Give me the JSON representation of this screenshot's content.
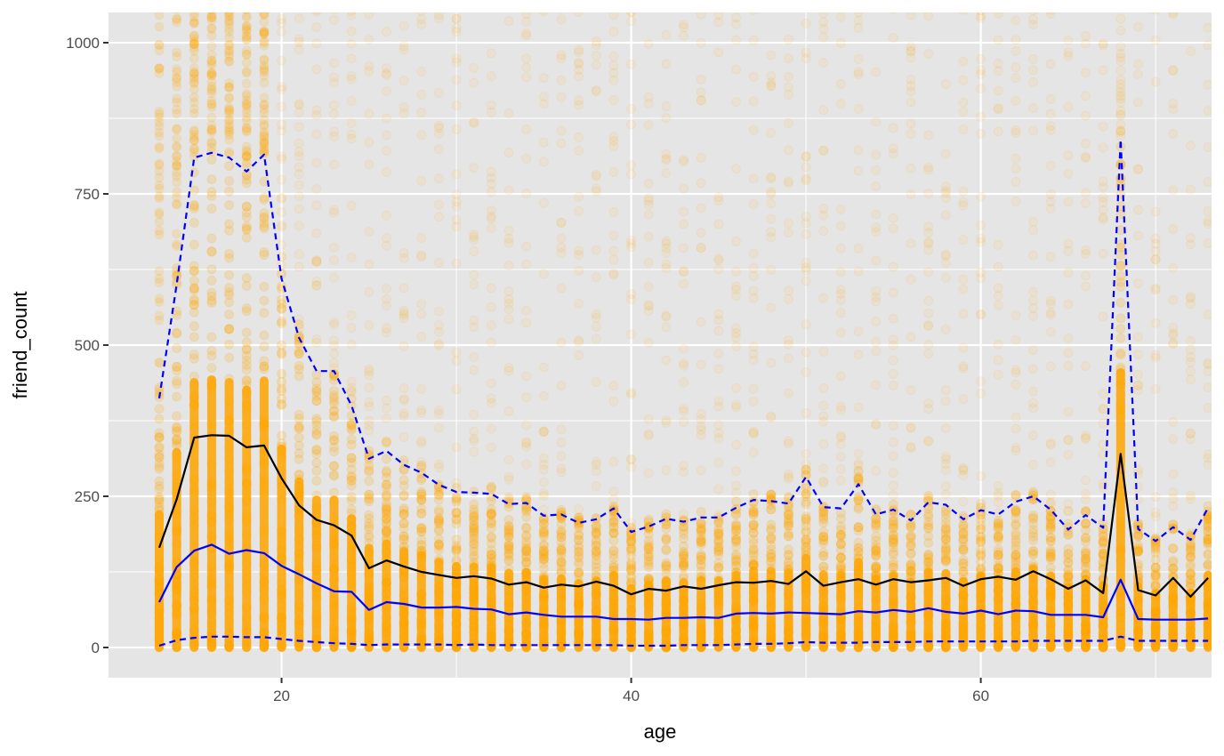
{
  "chart_data": {
    "type": "scatter",
    "xlabel": "age",
    "ylabel": "friend_count",
    "xlim": [
      10.1,
      73.2
    ],
    "ylim": [
      -50,
      1050
    ],
    "x_ticks": [
      20,
      40,
      60
    ],
    "y_ticks": [
      0,
      250,
      500,
      750,
      1000
    ],
    "grid": true,
    "background": "#e5e5e5",
    "colors": {
      "points": "#ffa500",
      "mean": "#000000",
      "quantiles": "#0000ff",
      "grid_major": "#ffffff"
    },
    "points_note": "dense column of points per integer age; 0 to beyond 1000",
    "ages": [
      13,
      14,
      15,
      16,
      17,
      18,
      19,
      20,
      21,
      22,
      23,
      24,
      25,
      26,
      27,
      28,
      29,
      30,
      31,
      32,
      33,
      34,
      35,
      36,
      37,
      38,
      39,
      40,
      41,
      42,
      43,
      44,
      45,
      46,
      47,
      48,
      49,
      50,
      51,
      52,
      53,
      54,
      55,
      56,
      57,
      58,
      59,
      60,
      61,
      62,
      63,
      64,
      65,
      66,
      67,
      68,
      69,
      70,
      71,
      72,
      73
    ],
    "series": [
      {
        "key": "mean",
        "line": "solid",
        "color": "#000000",
        "values": [
          165,
          245,
          347,
          351,
          350,
          331,
          334,
          280,
          235,
          211,
          202,
          185,
          131,
          144,
          134,
          125,
          120,
          115,
          118,
          114,
          104,
          108,
          99,
          104,
          101,
          109,
          102,
          88,
          97,
          94,
          101,
          97,
          103,
          108,
          107,
          110,
          105,
          126,
          102,
          108,
          113,
          104,
          113,
          108,
          111,
          115,
          102,
          113,
          117,
          112,
          126,
          113,
          97,
          111,
          90,
          320,
          95,
          86,
          115,
          84,
          115
        ]
      },
      {
        "key": "median",
        "line": "solid",
        "color": "#0000ff",
        "values": [
          75,
          133,
          160,
          170,
          155,
          161,
          156,
          135,
          121,
          106,
          93,
          92,
          62,
          75,
          72,
          66,
          66,
          67,
          64,
          63,
          55,
          58,
          54,
          51,
          51,
          51,
          47,
          47,
          46,
          49,
          49,
          50,
          49,
          56,
          57,
          56,
          58,
          57,
          56,
          55,
          60,
          58,
          62,
          59,
          65,
          59,
          56,
          61,
          55,
          61,
          60,
          54,
          54,
          54,
          50,
          112,
          47,
          46,
          46,
          46,
          48
        ]
      },
      {
        "key": "q90",
        "line": "dashed",
        "color": "#0000ff",
        "values": [
          412,
          600,
          810,
          818,
          810,
          787,
          815,
          610,
          512,
          457,
          457,
          400,
          312,
          325,
          302,
          289,
          269,
          257,
          256,
          254,
          237,
          239,
          218,
          220,
          206,
          212,
          230,
          191,
          200,
          213,
          208,
          215,
          215,
          231,
          244,
          242,
          238,
          282,
          232,
          230,
          270,
          220,
          228,
          210,
          240,
          236,
          212,
          227,
          220,
          241,
          250,
          228,
          195,
          219,
          198,
          840,
          196,
          176,
          199,
          178,
          231
        ]
      },
      {
        "key": "q10",
        "line": "dashed",
        "color": "#0000ff",
        "values": [
          3,
          12,
          16,
          18,
          18,
          17,
          17,
          14,
          11,
          9,
          7,
          6,
          4,
          5,
          5,
          5,
          5,
          4,
          5,
          4,
          4,
          4,
          4,
          4,
          4,
          4,
          4,
          3,
          3,
          3,
          4,
          4,
          4,
          5,
          6,
          6,
          7,
          9,
          8,
          8,
          8,
          9,
          9,
          9,
          10,
          10,
          10,
          10,
          10,
          10,
          11,
          11,
          11,
          11,
          11,
          18,
          11,
          11,
          11,
          11,
          11
        ]
      }
    ]
  }
}
